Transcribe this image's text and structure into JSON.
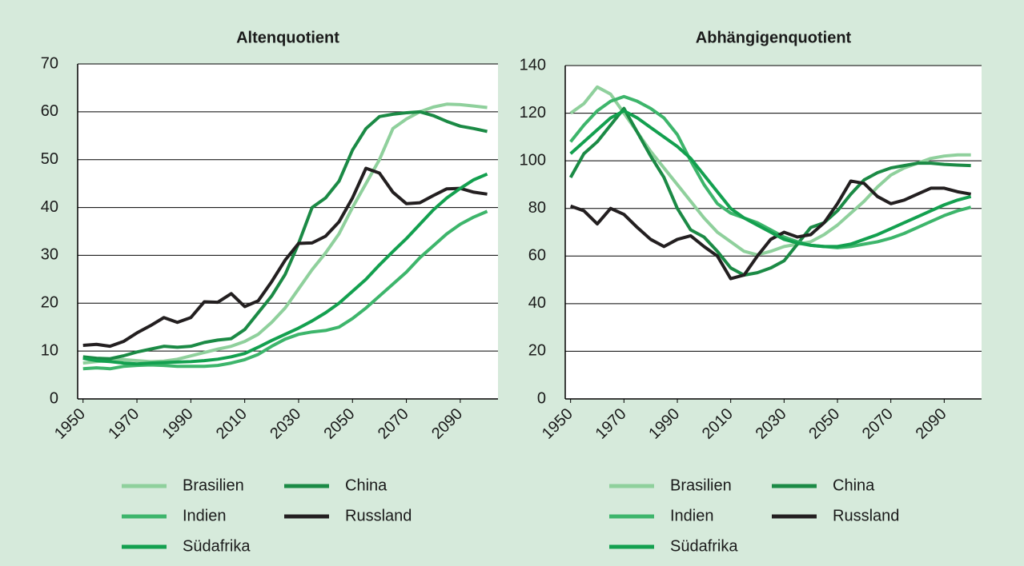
{
  "chart_data": [
    {
      "type": "line",
      "title": "Altenquotient",
      "x": [
        1950,
        1955,
        1960,
        1965,
        1970,
        1975,
        1980,
        1985,
        1990,
        1995,
        2000,
        2005,
        2010,
        2015,
        2020,
        2025,
        2030,
        2035,
        2040,
        2045,
        2050,
        2055,
        2060,
        2065,
        2070,
        2075,
        2080,
        2085,
        2090,
        2095,
        2100
      ],
      "xlim": [
        1948,
        2104
      ],
      "xticks": [
        1950,
        1970,
        1990,
        2010,
        2030,
        2050,
        2070,
        2090
      ],
      "ylim": [
        0,
        70
      ],
      "yticks": [
        0,
        10,
        20,
        30,
        40,
        50,
        60,
        70
      ],
      "grid": true,
      "series": [
        {
          "name": "Brasilien",
          "color": "#8fd09c",
          "values": [
            7.5,
            7.8,
            8,
            8.2,
            8,
            7.8,
            7.9,
            8.3,
            9,
            9.7,
            10.4,
            11,
            12,
            13.5,
            16,
            19,
            23,
            27,
            30.5,
            34.5,
            40,
            45,
            50,
            56.5,
            58.5,
            60,
            61,
            61.6,
            61.5,
            61.2,
            60.9
          ]
        },
        {
          "name": "China",
          "color": "#1b8a45",
          "values": [
            8.8,
            8.5,
            8.4,
            9,
            9.8,
            10.4,
            11,
            10.8,
            11,
            11.8,
            12.3,
            12.6,
            14.5,
            18,
            21.5,
            26,
            32.5,
            40,
            42,
            45.5,
            52,
            56.5,
            59,
            59.5,
            59.8,
            60,
            59.2,
            58,
            57,
            56.5,
            55.9
          ]
        },
        {
          "name": "Indien",
          "color": "#3db56b",
          "values": [
            6.3,
            6.5,
            6.3,
            6.8,
            7,
            7.1,
            7,
            6.8,
            6.8,
            6.8,
            7,
            7.5,
            8.2,
            9.3,
            11,
            12.5,
            13.5,
            14,
            14.3,
            15,
            16.8,
            19,
            21.5,
            24,
            26.5,
            29.5,
            32,
            34.5,
            36.5,
            38,
            39.2
          ]
        },
        {
          "name": "Russland",
          "color": "#231f20",
          "values": [
            11.2,
            11.4,
            11,
            12,
            13.8,
            15.3,
            17,
            16,
            17,
            20.3,
            20.2,
            22,
            19.3,
            20.5,
            24.5,
            29,
            32.5,
            32.6,
            34,
            37,
            42,
            48.2,
            47.2,
            43.2,
            40.8,
            41,
            42.5,
            43.9,
            44,
            43.2,
            42.8
          ]
        },
        {
          "name": "Südafrika",
          "color": "#13a04f",
          "values": [
            8.5,
            8,
            7.8,
            7.5,
            7.3,
            7.5,
            7.6,
            7.7,
            7.8,
            8,
            8.3,
            8.8,
            9.5,
            10.8,
            12.2,
            13.5,
            14.8,
            16.3,
            18,
            20,
            22.5,
            25,
            28,
            30.8,
            33.5,
            36.5,
            39.5,
            42,
            44,
            45.8,
            47
          ]
        }
      ]
    },
    {
      "type": "line",
      "title": "Abhängigenquotient",
      "x": [
        1950,
        1955,
        1960,
        1965,
        1970,
        1975,
        1980,
        1985,
        1990,
        1995,
        2000,
        2005,
        2010,
        2015,
        2020,
        2025,
        2030,
        2035,
        2040,
        2045,
        2050,
        2055,
        2060,
        2065,
        2070,
        2075,
        2080,
        2085,
        2090,
        2095,
        2100
      ],
      "xlim": [
        1948,
        2104
      ],
      "xticks": [
        1950,
        1970,
        1990,
        2010,
        2030,
        2050,
        2070,
        2090
      ],
      "ylim": [
        0,
        140
      ],
      "yticks": [
        0,
        20,
        40,
        60,
        80,
        100,
        120,
        140
      ],
      "grid": true,
      "series": [
        {
          "name": "Brasilien",
          "color": "#8fd09c",
          "values": [
            120,
            124,
            131,
            128,
            120,
            112,
            104,
            97,
            90,
            83,
            76,
            70,
            66,
            62,
            60.5,
            62,
            64,
            65,
            66,
            69,
            73,
            78,
            83,
            89,
            94,
            97,
            99,
            101,
            102,
            102.5,
            102.5
          ]
        },
        {
          "name": "China",
          "color": "#1b8a45",
          "values": [
            93,
            103,
            108,
            115,
            122,
            112,
            102,
            93,
            80,
            71,
            68,
            62,
            55,
            52,
            53,
            55,
            58,
            65,
            72,
            74,
            79,
            86,
            92,
            95,
            97,
            98,
            99,
            99,
            98.5,
            98.2,
            98
          ]
        },
        {
          "name": "Indien",
          "color": "#3db56b",
          "values": [
            108,
            115,
            121,
            125,
            127,
            125,
            122,
            118,
            111,
            100,
            90,
            82,
            78,
            76,
            74,
            71,
            68,
            66,
            64.5,
            64,
            63.5,
            64,
            65,
            66,
            67.5,
            69.5,
            72,
            74.5,
            77,
            79,
            80.5
          ]
        },
        {
          "name": "Russland",
          "color": "#231f20",
          "values": [
            81,
            79,
            73.5,
            80,
            77.5,
            72,
            67,
            64,
            67,
            68.5,
            64,
            60,
            50.5,
            52,
            60,
            67,
            70,
            68,
            69,
            74,
            82,
            91.5,
            90.5,
            85,
            82,
            83.5,
            86,
            88.5,
            88.5,
            87,
            86
          ]
        },
        {
          "name": "Südafrika",
          "color": "#13a04f",
          "values": [
            103,
            108,
            113,
            118,
            121,
            118,
            114,
            110,
            106,
            101,
            94,
            87,
            80,
            76,
            73,
            70,
            67,
            65.5,
            64.5,
            64,
            64,
            65,
            67,
            69,
            71.5,
            74,
            76.5,
            79,
            81.5,
            83.5,
            85
          ]
        }
      ]
    }
  ]
}
